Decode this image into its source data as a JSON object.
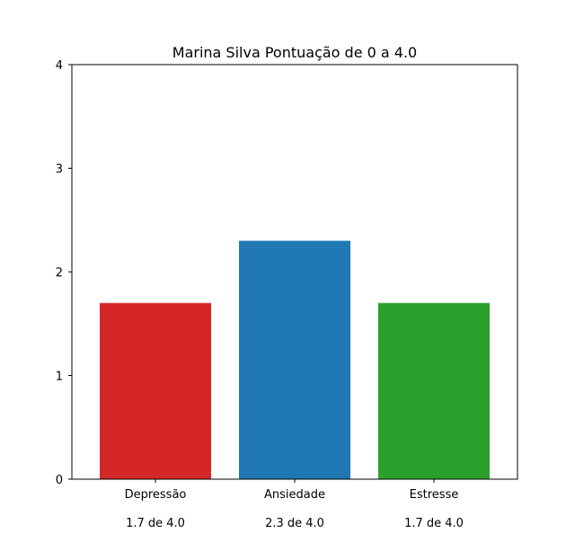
{
  "chart_data": {
    "type": "bar",
    "title": "Marina Silva Pontuação de 0 a 4.0",
    "categories": [
      "Depressão",
      "Ansiedade",
      "Estresse"
    ],
    "values": [
      1.7,
      2.3,
      1.7
    ],
    "value_labels": [
      "1.7 de 4.0",
      "2.3 de 4.0",
      "1.7 de 4.0"
    ],
    "colors": [
      "#d62728",
      "#1f77b4",
      "#2ca02c"
    ],
    "ylim": [
      0,
      4
    ],
    "yticks": [
      "0",
      "1",
      "2",
      "3",
      "4"
    ],
    "xlabel": "",
    "ylabel": "",
    "grid": false,
    "legend": "none"
  }
}
